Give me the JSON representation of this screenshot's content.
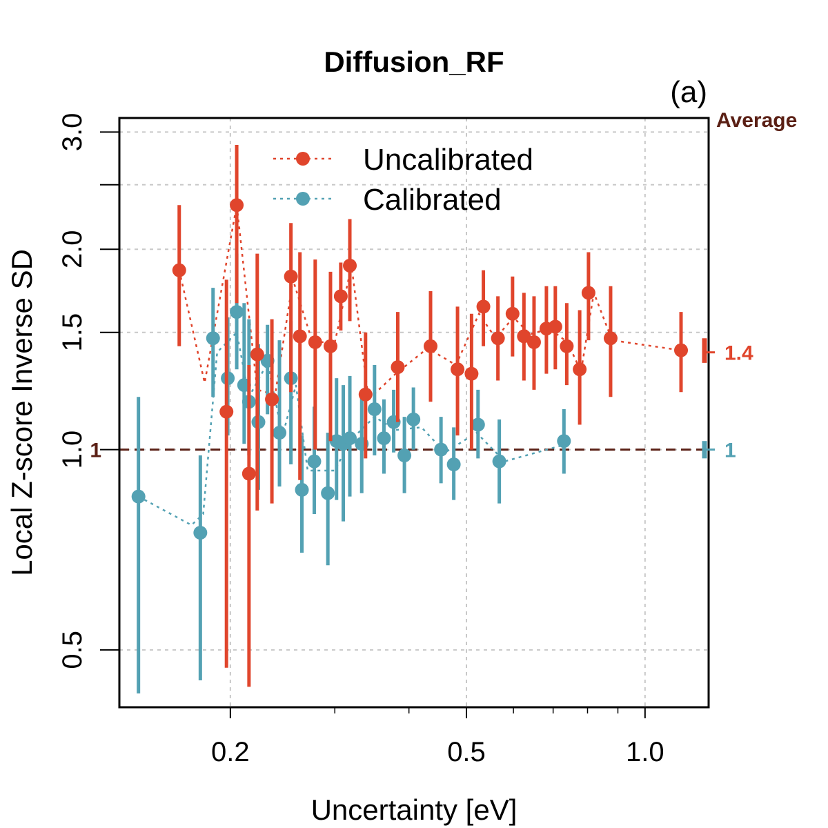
{
  "chart_data": {
    "type": "scatter",
    "title": "Diffusion_RF",
    "panel_label": "(a)",
    "xlabel": "Uncertainty [eV]",
    "ylabel": "Local Z-score Inverse SD",
    "xscale": "log",
    "yscale": "log",
    "xlim": [
      0.13,
      1.28
    ],
    "ylim": [
      0.41,
      3.15
    ],
    "x_ticks": [
      0.2,
      0.5,
      1.0
    ],
    "x_tick_labels": [
      "0.2",
      "0.5",
      "1.0"
    ],
    "x_minor_grid": [
      0.3,
      0.4,
      0.6,
      0.7,
      0.8,
      0.9
    ],
    "y_ticks": [
      0.5,
      1.0,
      1.5,
      2.0,
      3.0
    ],
    "y_tick_labels": [
      "0.5",
      "1.0",
      "1.5",
      "2.0",
      "3.0"
    ],
    "y_minor_ticks": [
      2.5
    ],
    "reference_line": {
      "y": 1.0,
      "label": "1",
      "color": "#5a1f14"
    },
    "average_header": "Average",
    "legend_position": "top",
    "colors": {
      "Uncalibrated": "#e0452c",
      "Calibrated": "#53a1b3",
      "reference": "#5a1f14"
    },
    "series": [
      {
        "name": "Uncalibrated",
        "average": 1.4,
        "average_label": "1.4",
        "average_band": [
          1.35,
          1.47
        ],
        "points": [
          {
            "x": 0.164,
            "y": 1.86,
            "lo": 1.43,
            "hi": 2.33
          },
          {
            "x": 0.197,
            "y": 1.14,
            "lo": 0.47,
            "hi": 1.8
          },
          {
            "x": 0.205,
            "y": 2.33,
            "lo": 1.66,
            "hi": 2.87
          },
          {
            "x": 0.215,
            "y": 0.92,
            "lo": 0.44,
            "hi": 1.34
          },
          {
            "x": 0.222,
            "y": 1.39,
            "lo": 0.81,
            "hi": 1.97
          },
          {
            "x": 0.235,
            "y": 1.19,
            "lo": 0.83,
            "hi": 1.57
          },
          {
            "x": 0.253,
            "y": 1.82,
            "lo": 1.22,
            "hi": 2.19
          },
          {
            "x": 0.262,
            "y": 1.48,
            "lo": 0.9,
            "hi": 1.98
          },
          {
            "x": 0.278,
            "y": 1.45,
            "lo": 1.0,
            "hi": 1.93
          },
          {
            "x": 0.295,
            "y": 1.43,
            "lo": 1.03,
            "hi": 1.85
          },
          {
            "x": 0.307,
            "y": 1.7,
            "lo": 1.51,
            "hi": 1.91
          },
          {
            "x": 0.318,
            "y": 1.89,
            "lo": 1.56,
            "hi": 2.22
          },
          {
            "x": 0.338,
            "y": 1.21,
            "lo": 0.97,
            "hi": 1.5
          },
          {
            "x": 0.383,
            "y": 1.33,
            "lo": 1.1,
            "hi": 1.61
          },
          {
            "x": 0.435,
            "y": 1.43,
            "lo": 1.18,
            "hi": 1.73
          },
          {
            "x": 0.483,
            "y": 1.32,
            "lo": 1.05,
            "hi": 1.64
          },
          {
            "x": 0.51,
            "y": 1.3,
            "lo": 1.0,
            "hi": 1.6
          },
          {
            "x": 0.534,
            "y": 1.64,
            "lo": 1.43,
            "hi": 1.86
          },
          {
            "x": 0.565,
            "y": 1.47,
            "lo": 1.27,
            "hi": 1.7
          },
          {
            "x": 0.598,
            "y": 1.6,
            "lo": 1.38,
            "hi": 1.82
          },
          {
            "x": 0.625,
            "y": 1.48,
            "lo": 1.27,
            "hi": 1.72
          },
          {
            "x": 0.65,
            "y": 1.45,
            "lo": 1.23,
            "hi": 1.7
          },
          {
            "x": 0.682,
            "y": 1.52,
            "lo": 1.3,
            "hi": 1.76
          },
          {
            "x": 0.706,
            "y": 1.53,
            "lo": 1.32,
            "hi": 1.76
          },
          {
            "x": 0.738,
            "y": 1.43,
            "lo": 1.25,
            "hi": 1.66
          },
          {
            "x": 0.776,
            "y": 1.32,
            "lo": 1.09,
            "hi": 1.62
          },
          {
            "x": 0.803,
            "y": 1.72,
            "lo": 1.46,
            "hi": 1.98
          },
          {
            "x": 0.875,
            "y": 1.47,
            "lo": 1.2,
            "hi": 1.76
          },
          {
            "x": 1.15,
            "y": 1.41,
            "lo": 1.22,
            "hi": 1.61
          }
        ]
      },
      {
        "name": "Calibrated",
        "average": 1.0,
        "average_label": "1",
        "average_band": [
          0.97,
          1.03
        ],
        "points": [
          {
            "x": 0.14,
            "y": 0.85,
            "lo": 0.43,
            "hi": 1.2
          },
          {
            "x": 0.178,
            "y": 0.75,
            "lo": 0.45,
            "hi": 0.98
          },
          {
            "x": 0.187,
            "y": 1.47,
            "lo": 1.2,
            "hi": 1.75
          },
          {
            "x": 0.198,
            "y": 1.28,
            "lo": 1.05,
            "hi": 1.58
          },
          {
            "x": 0.205,
            "y": 1.61,
            "lo": 1.32,
            "hi": 1.97
          },
          {
            "x": 0.211,
            "y": 1.25,
            "lo": 1.02,
            "hi": 1.66
          },
          {
            "x": 0.215,
            "y": 1.18,
            "lo": 0.98,
            "hi": 1.57
          },
          {
            "x": 0.223,
            "y": 1.1,
            "lo": 0.87,
            "hi": 1.44
          },
          {
            "x": 0.231,
            "y": 1.36,
            "lo": 1.13,
            "hi": 1.54
          },
          {
            "x": 0.242,
            "y": 1.06,
            "lo": 0.88,
            "hi": 1.46
          },
          {
            "x": 0.253,
            "y": 1.28,
            "lo": 0.95,
            "hi": 1.56
          },
          {
            "x": 0.264,
            "y": 0.87,
            "lo": 0.7,
            "hi": 1.05
          },
          {
            "x": 0.277,
            "y": 0.96,
            "lo": 0.8,
            "hi": 1.16
          },
          {
            "x": 0.292,
            "y": 0.86,
            "lo": 0.67,
            "hi": 1.06
          },
          {
            "x": 0.302,
            "y": 1.03,
            "lo": 0.84,
            "hi": 1.28
          },
          {
            "x": 0.31,
            "y": 1.02,
            "lo": 0.78,
            "hi": 1.25
          },
          {
            "x": 0.318,
            "y": 1.04,
            "lo": 0.85,
            "hi": 1.29
          },
          {
            "x": 0.333,
            "y": 1.02,
            "lo": 0.86,
            "hi": 1.2
          },
          {
            "x": 0.35,
            "y": 1.15,
            "lo": 0.98,
            "hi": 1.34
          },
          {
            "x": 0.363,
            "y": 1.04,
            "lo": 0.92,
            "hi": 1.19
          },
          {
            "x": 0.377,
            "y": 1.1,
            "lo": 0.99,
            "hi": 1.23
          },
          {
            "x": 0.393,
            "y": 0.98,
            "lo": 0.86,
            "hi": 1.12
          },
          {
            "x": 0.407,
            "y": 1.11,
            "lo": 1.0,
            "hi": 1.24
          },
          {
            "x": 0.453,
            "y": 1.0,
            "lo": 0.89,
            "hi": 1.12
          },
          {
            "x": 0.476,
            "y": 0.95,
            "lo": 0.84,
            "hi": 1.08
          },
          {
            "x": 0.523,
            "y": 1.09,
            "lo": 0.97,
            "hi": 1.23
          },
          {
            "x": 0.568,
            "y": 0.96,
            "lo": 0.83,
            "hi": 1.11
          },
          {
            "x": 0.73,
            "y": 1.03,
            "lo": 0.92,
            "hi": 1.15
          }
        ]
      }
    ],
    "trend_lines": {
      "Uncalibrated": [
        [
          0.164,
          1.86
        ],
        [
          0.181,
          1.26
        ],
        [
          0.205,
          2.33
        ],
        [
          0.222,
          1.23
        ],
        [
          0.238,
          1.21
        ],
        [
          0.255,
          1.8
        ],
        [
          0.275,
          1.45
        ],
        [
          0.3,
          1.45
        ],
        [
          0.32,
          1.89
        ],
        [
          0.342,
          1.19
        ],
        [
          0.38,
          1.3
        ],
        [
          0.43,
          1.42
        ],
        [
          0.48,
          1.34
        ],
        [
          0.525,
          1.6
        ],
        [
          0.56,
          1.47
        ],
        [
          0.6,
          1.58
        ],
        [
          0.64,
          1.49
        ],
        [
          0.69,
          1.52
        ],
        [
          0.74,
          1.45
        ],
        [
          0.78,
          1.31
        ],
        [
          0.82,
          1.72
        ],
        [
          0.88,
          1.46
        ],
        [
          1.15,
          1.41
        ]
      ],
      "Calibrated": [
        [
          0.14,
          0.85
        ],
        [
          0.172,
          0.77
        ],
        [
          0.18,
          0.8
        ],
        [
          0.19,
          1.4
        ],
        [
          0.205,
          1.5
        ],
        [
          0.215,
          1.2
        ],
        [
          0.231,
          1.35
        ],
        [
          0.245,
          1.05
        ],
        [
          0.258,
          1.25
        ],
        [
          0.27,
          0.93
        ],
        [
          0.3,
          0.93
        ],
        [
          0.318,
          1.03
        ],
        [
          0.35,
          1.12
        ],
        [
          0.38,
          1.07
        ],
        [
          0.42,
          1.08
        ],
        [
          0.46,
          0.99
        ],
        [
          0.52,
          1.06
        ],
        [
          0.58,
          0.96
        ],
        [
          0.74,
          1.02
        ]
      ]
    }
  }
}
